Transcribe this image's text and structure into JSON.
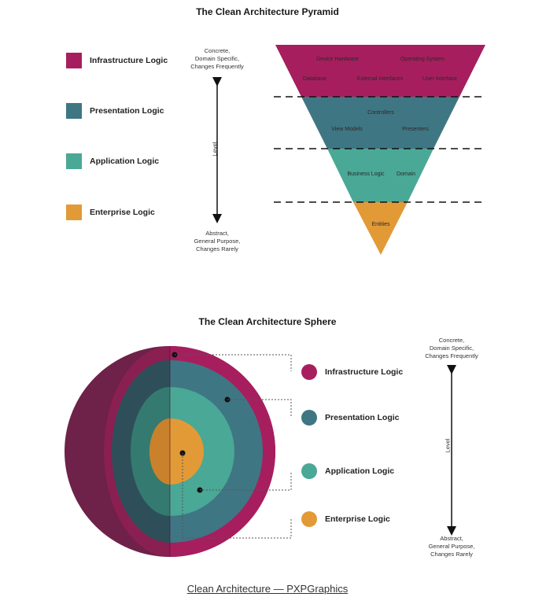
{
  "colors": {
    "infrastructure": "#a71e5f",
    "presentation": "#3f7683",
    "application": "#4aa896",
    "enterprise": "#e29a37",
    "sphere_back": "#6e2149"
  },
  "pyramid": {
    "title": "The Clean Architecture Pyramid",
    "legend": [
      {
        "label": "Infrastructure Logic",
        "color_key": "infrastructure"
      },
      {
        "label": "Presentation Logic",
        "color_key": "presentation"
      },
      {
        "label": "Application Logic",
        "color_key": "application"
      },
      {
        "label": "Enterprise Logic",
        "color_key": "enterprise"
      }
    ],
    "axis": {
      "top_lines": [
        "Concrete,",
        "Domain Specific,",
        "Changes Frequently"
      ],
      "label": "Level",
      "bottom_lines": [
        "Abstract,",
        "General Purpose,",
        "Changes Rarely"
      ]
    },
    "layers": {
      "infrastructure": [
        "Device Hardware",
        "Operating System",
        "Database",
        "External Interfaces",
        "User Interface"
      ],
      "presentation": [
        "Controllers",
        "View Models",
        "Presenters"
      ],
      "application": [
        "Business Logic",
        "Domain"
      ],
      "enterprise": [
        "Entities"
      ]
    }
  },
  "sphere": {
    "title": "The Clean Architecture Sphere",
    "legend": [
      {
        "label": "Infrastructure Logic",
        "color_key": "infrastructure"
      },
      {
        "label": "Presentation Logic",
        "color_key": "presentation"
      },
      {
        "label": "Application Logic",
        "color_key": "application"
      },
      {
        "label": "Enterprise Logic",
        "color_key": "enterprise"
      }
    ],
    "axis": {
      "top_lines": [
        "Concrete,",
        "Domain Specific,",
        "Changes Frequently"
      ],
      "label": "Level",
      "bottom_lines": [
        "Abstract,",
        "General Purpose,",
        "Changes Rarely"
      ]
    }
  },
  "caption": "Clean Architecture — PXPGraphics"
}
